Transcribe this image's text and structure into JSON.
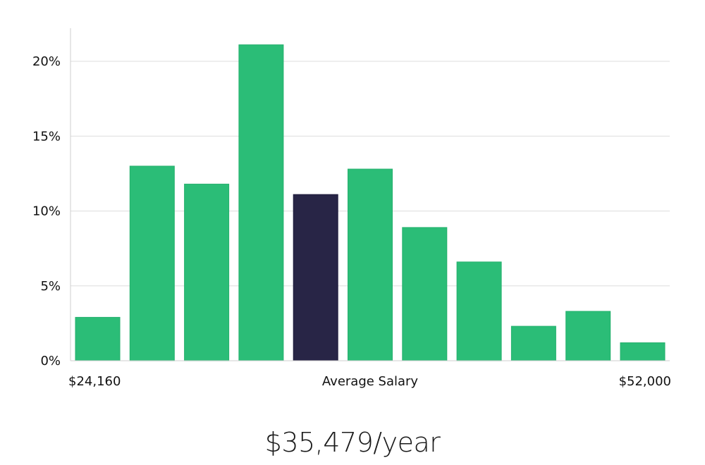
{
  "chart_data": {
    "type": "bar",
    "title": "",
    "xlabel": "Average Salary",
    "ylabel": "",
    "x_min_label": "$24,160",
    "x_max_label": "$52,000",
    "ylim": [
      0,
      22
    ],
    "y_ticks": [
      0,
      5,
      10,
      15,
      20
    ],
    "y_tick_labels": [
      "0%",
      "5%",
      "10%",
      "15%",
      "20%"
    ],
    "values": [
      2.9,
      13.0,
      11.8,
      21.1,
      11.1,
      12.8,
      8.9,
      6.6,
      2.3,
      3.3,
      1.2
    ],
    "highlight_index": 4,
    "grid": true
  },
  "colors": {
    "bar": "#2bbd77",
    "highlight": "#282546",
    "grid": "#dddddd",
    "axis": "#cfcfcf"
  },
  "summary": {
    "salary": "$35,479/year"
  }
}
